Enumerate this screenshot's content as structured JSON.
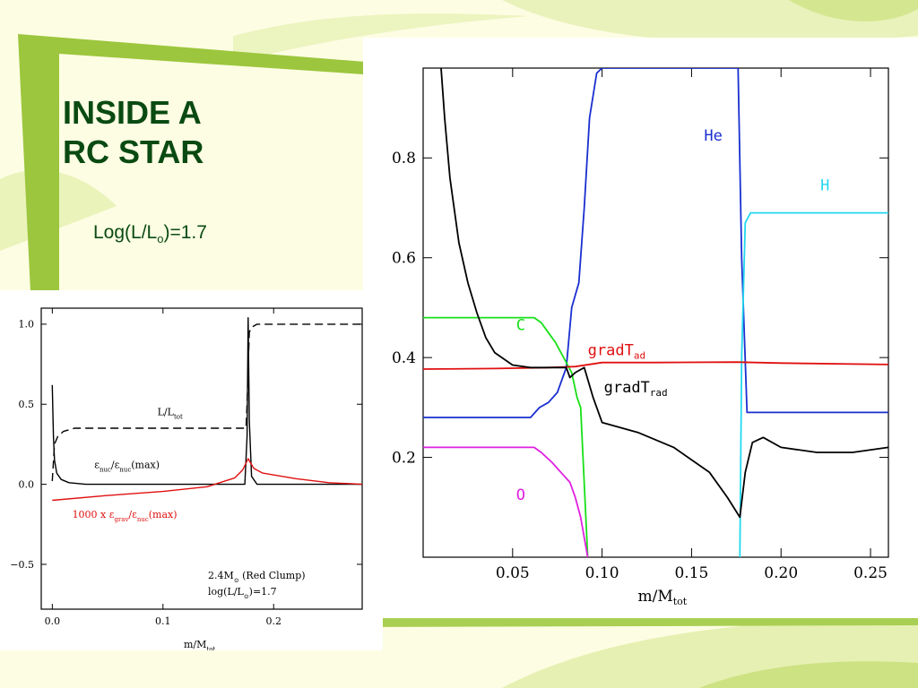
{
  "slide": {
    "title_line1": "INSIDE A",
    "title_line2": "RC STAR",
    "subtitle_main": "Log(L/L",
    "subtitle_sub": "o",
    "subtitle_tail": ")=1.7"
  },
  "chart_data": [
    {
      "type": "line",
      "xlabel": "m/M",
      "xlabel_sub": "tot",
      "ylabel": "",
      "xlim": [
        0.0,
        0.26
      ],
      "ylim": [
        0.0,
        0.98
      ],
      "x_ticks": [
        0.05,
        0.1,
        0.15,
        0.2,
        0.25
      ],
      "x_tick_labels": [
        "0.05",
        "0.10",
        "0.15",
        "0.20",
        "0.25"
      ],
      "y_ticks": [
        0.2,
        0.4,
        0.6,
        0.8
      ],
      "y_tick_labels": [
        "0.2",
        "0.4",
        "0.6",
        "0.8"
      ],
      "series": [
        {
          "name": "He",
          "color": "#1a2fd0",
          "points": [
            [
              0.0,
              0.28
            ],
            [
              0.06,
              0.28
            ],
            [
              0.065,
              0.3
            ],
            [
              0.07,
              0.31
            ],
            [
              0.075,
              0.33
            ],
            [
              0.08,
              0.38
            ],
            [
              0.083,
              0.5
            ],
            [
              0.087,
              0.55
            ],
            [
              0.09,
              0.7
            ],
            [
              0.093,
              0.88
            ],
            [
              0.097,
              0.97
            ],
            [
              0.1,
              0.98
            ],
            [
              0.176,
              0.98
            ],
            [
              0.178,
              0.6
            ],
            [
              0.181,
              0.29
            ],
            [
              0.26,
              0.29
            ]
          ]
        },
        {
          "name": "H",
          "color": "#22d8f0",
          "points": [
            [
              0.177,
              0.0
            ],
            [
              0.178,
              0.4
            ],
            [
              0.18,
              0.67
            ],
            [
              0.183,
              0.69
            ],
            [
              0.26,
              0.69
            ]
          ]
        },
        {
          "name": "C",
          "color": "#18e018",
          "points": [
            [
              0.0,
              0.48
            ],
            [
              0.062,
              0.48
            ],
            [
              0.066,
              0.47
            ],
            [
              0.07,
              0.45
            ],
            [
              0.074,
              0.43
            ],
            [
              0.077,
              0.41
            ],
            [
              0.08,
              0.39
            ],
            [
              0.083,
              0.37
            ],
            [
              0.086,
              0.32
            ],
            [
              0.088,
              0.3
            ],
            [
              0.092,
              0.0
            ]
          ]
        },
        {
          "name": "O",
          "color": "#e020e0",
          "points": [
            [
              0.0,
              0.22
            ],
            [
              0.062,
              0.22
            ],
            [
              0.066,
              0.21
            ],
            [
              0.072,
              0.19
            ],
            [
              0.077,
              0.17
            ],
            [
              0.082,
              0.15
            ],
            [
              0.085,
              0.12
            ],
            [
              0.088,
              0.08
            ],
            [
              0.091,
              0.02
            ],
            [
              0.092,
              0.0
            ]
          ]
        },
        {
          "name": "gradT_ad",
          "color": "#e01010",
          "points": [
            [
              0.0,
              0.377
            ],
            [
              0.04,
              0.378
            ],
            [
              0.07,
              0.38
            ],
            [
              0.085,
              0.382
            ],
            [
              0.1,
              0.39
            ],
            [
              0.13,
              0.39
            ],
            [
              0.175,
              0.391
            ],
            [
              0.2,
              0.389
            ],
            [
              0.26,
              0.386
            ]
          ]
        },
        {
          "name": "gradT_rad",
          "color": "#000000",
          "points": [
            [
              0.01,
              0.98
            ],
            [
              0.012,
              0.88
            ],
            [
              0.015,
              0.76
            ],
            [
              0.02,
              0.63
            ],
            [
              0.025,
              0.55
            ],
            [
              0.03,
              0.49
            ],
            [
              0.035,
              0.44
            ],
            [
              0.04,
              0.41
            ],
            [
              0.05,
              0.385
            ],
            [
              0.06,
              0.38
            ],
            [
              0.075,
              0.38
            ],
            [
              0.08,
              0.38
            ],
            [
              0.082,
              0.36
            ],
            [
              0.085,
              0.37
            ],
            [
              0.09,
              0.38
            ],
            [
              0.095,
              0.32
            ],
            [
              0.1,
              0.27
            ],
            [
              0.12,
              0.25
            ],
            [
              0.14,
              0.22
            ],
            [
              0.16,
              0.17
            ],
            [
              0.17,
              0.12
            ],
            [
              0.177,
              0.08
            ],
            [
              0.18,
              0.17
            ],
            [
              0.184,
              0.23
            ],
            [
              0.19,
              0.24
            ],
            [
              0.2,
              0.22
            ],
            [
              0.22,
              0.21
            ],
            [
              0.24,
              0.21
            ],
            [
              0.26,
              0.22
            ]
          ]
        }
      ],
      "annotations": [
        {
          "text": "He",
          "sub": "",
          "color": "#1a2fd0",
          "x": 0.157,
          "y": 0.835
        },
        {
          "text": "H",
          "sub": "",
          "color": "#22d8f0",
          "x": 0.222,
          "y": 0.735
        },
        {
          "text": "C",
          "sub": "",
          "color": "#18e018",
          "x": 0.052,
          "y": 0.455
        },
        {
          "text": "O",
          "sub": "",
          "color": "#e020e0",
          "x": 0.052,
          "y": 0.115
        },
        {
          "text": "gradT",
          "sub": "ad",
          "color": "#e01010",
          "x": 0.092,
          "y": 0.405
        },
        {
          "text": "gradT",
          "sub": "rad",
          "color": "#000000",
          "x": 0.101,
          "y": 0.33
        }
      ]
    },
    {
      "type": "line",
      "xlabel": "m/M",
      "xlabel_sub": "tot",
      "ylabel": "",
      "xlim": [
        -0.01,
        0.28
      ],
      "ylim": [
        -0.78,
        1.1
      ],
      "x_ticks": [
        0.0,
        0.1,
        0.2
      ],
      "x_tick_labels": [
        "0.0",
        "0.1",
        "0.2"
      ],
      "y_ticks": [
        1.0,
        0.5,
        0.0,
        -0.5
      ],
      "y_tick_labels": [
        "1.0",
        "0.5",
        "0.0",
        "−0.5"
      ],
      "series": [
        {
          "name": "L/L_tot",
          "color": "#000000",
          "dash": true,
          "points": [
            [
              0.0,
              0.02
            ],
            [
              0.002,
              0.25
            ],
            [
              0.005,
              0.3
            ],
            [
              0.01,
              0.33
            ],
            [
              0.02,
              0.35
            ],
            [
              0.175,
              0.35
            ],
            [
              0.176,
              0.5
            ],
            [
              0.178,
              0.95
            ],
            [
              0.18,
              0.98
            ],
            [
              0.185,
              1.0
            ],
            [
              0.28,
              1.0
            ]
          ]
        },
        {
          "name": "ε_nuc/ε_nuc(max)",
          "color": "#000000",
          "dash": false,
          "points": [
            [
              0.0,
              0.62
            ],
            [
              0.001,
              0.3
            ],
            [
              0.002,
              0.15
            ],
            [
              0.004,
              0.07
            ],
            [
              0.008,
              0.03
            ],
            [
              0.015,
              0.01
            ],
            [
              0.03,
              0.0
            ],
            [
              0.174,
              0.0
            ],
            [
              0.176,
              0.3
            ],
            [
              0.177,
              1.04
            ],
            [
              0.178,
              0.4
            ],
            [
              0.18,
              0.05
            ],
            [
              0.185,
              0.0
            ],
            [
              0.28,
              0.0
            ]
          ]
        },
        {
          "name": "1000 x ε_grav/ε_nuc(max)",
          "color": "#e01010",
          "dash": false,
          "points": [
            [
              0.0,
              -0.1
            ],
            [
              0.05,
              -0.07
            ],
            [
              0.1,
              -0.045
            ],
            [
              0.14,
              -0.015
            ],
            [
              0.165,
              0.04
            ],
            [
              0.172,
              0.09
            ],
            [
              0.177,
              0.16
            ],
            [
              0.182,
              0.1
            ],
            [
              0.19,
              0.07
            ],
            [
              0.22,
              0.035
            ],
            [
              0.25,
              0.01
            ],
            [
              0.28,
              0.0
            ]
          ]
        }
      ],
      "annotations": [
        {
          "text": "L/L",
          "sub": "tot",
          "color": "#000000",
          "x": 0.095,
          "y": 0.43
        },
        {
          "text": "ε",
          "sub": "nuc",
          "tail": "/ε",
          "tail_sub": "nuc",
          "tail2": "(max)",
          "color": "#000000",
          "x": 0.038,
          "y": 0.1
        },
        {
          "text": "1000 x ε",
          "sub": "grav",
          "tail": "/ε",
          "tail_sub": "nuc",
          "tail2": "(max)",
          "color": "#e01010",
          "x": 0.018,
          "y": -0.21
        }
      ],
      "legend_text": {
        "line1_a": "2.4M",
        "line1_b": "⊙",
        "line1_c": " (Red Clump)",
        "line2_a": "log(L/L",
        "line2_b": "⊙",
        "line2_c": ")=1.7"
      }
    }
  ]
}
